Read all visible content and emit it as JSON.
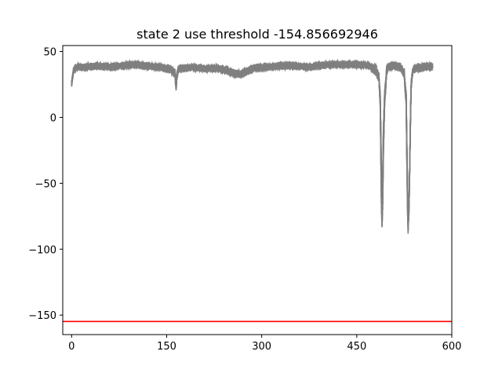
{
  "chart_data": {
    "type": "line",
    "title": "state 2 use threshold -154.856692946",
    "xlabel": "",
    "ylabel": "",
    "xlim": [
      -14,
      600
    ],
    "ylim": [
      -164.8,
      54.5
    ],
    "xticks": [
      0,
      150,
      300,
      450,
      600
    ],
    "xtick_labels": [
      "0",
      "150",
      "300",
      "450",
      "600"
    ],
    "yticks": [
      50,
      0,
      -50,
      -100,
      -150
    ],
    "ytick_labels": [
      "50",
      "0",
      "−50",
      "−100",
      "−150"
    ],
    "grid": false,
    "legend": "none",
    "trace_style": "dashed",
    "trace_color": "#808080",
    "threshold_color": "#ff0000",
    "threshold": {
      "name": "threshold",
      "y": -154.856692946
    },
    "envelope": {
      "x": [
        0,
        3,
        5,
        10,
        20,
        40,
        60,
        80,
        100,
        120,
        140,
        155,
        163,
        165,
        166,
        167,
        168,
        170,
        175,
        190,
        210,
        230,
        245,
        255,
        265,
        275,
        290,
        310,
        330,
        350,
        370,
        390,
        410,
        430,
        450,
        470,
        480,
        485,
        487,
        488,
        489,
        490,
        491,
        492,
        494,
        497,
        500,
        510,
        520,
        525,
        528,
        529,
        530,
        531,
        532,
        533,
        534,
        535,
        536,
        538,
        540,
        545,
        550,
        560,
        570
      ],
      "upper": [
        27,
        38,
        40,
        41,
        41,
        42,
        41,
        42,
        43,
        42,
        41,
        40,
        38,
        36,
        36,
        37,
        39,
        40,
        40,
        41,
        40,
        40,
        39,
        37,
        36,
        38,
        41,
        41,
        42,
        42,
        41,
        42,
        43,
        43,
        43,
        42,
        41,
        36,
        30,
        20,
        -10,
        -40,
        -10,
        20,
        33,
        41,
        42,
        42,
        41,
        38,
        30,
        10,
        -20,
        -50,
        -70,
        -50,
        -20,
        10,
        30,
        38,
        40,
        41,
        41,
        42,
        42
      ],
      "lower": [
        24,
        32,
        34,
        35,
        35,
        36,
        35,
        36,
        37,
        36,
        35,
        33,
        29,
        20,
        25,
        30,
        33,
        34,
        34,
        35,
        34,
        34,
        32,
        30,
        29,
        31,
        34,
        35,
        36,
        36,
        35,
        36,
        37,
        37,
        37,
        36,
        30,
        25,
        10,
        -30,
        -70,
        -84,
        -70,
        -30,
        10,
        30,
        35,
        36,
        34,
        28,
        10,
        -30,
        -70,
        -88,
        -80,
        -60,
        -30,
        0,
        20,
        30,
        33,
        34,
        34,
        35,
        35
      ]
    },
    "series_count": 20
  }
}
